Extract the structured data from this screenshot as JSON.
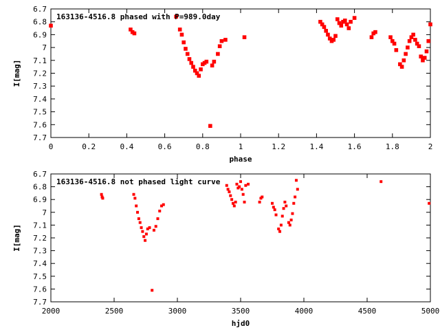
{
  "chart_data": [
    {
      "type": "scatter",
      "title": "163136-4516.8 phased with P=989.0day",
      "xlabel": "phase",
      "ylabel": "I[mag]",
      "xlim": [
        0,
        2
      ],
      "ylim": [
        6.7,
        7.7
      ],
      "y_inverted": true,
      "x_ticks": [
        "0",
        "0.2",
        "0.4",
        "0.6",
        "0.8",
        "1",
        "1.2",
        "1.4",
        "1.6",
        "1.8",
        "2"
      ],
      "y_ticks": [
        "6.7",
        "6.8",
        "6.9",
        "7",
        "7.1",
        "7.2",
        "7.3",
        "7.4",
        "7.5",
        "7.6",
        "7.7"
      ],
      "color": "#ff0000",
      "series": [
        {
          "x": [
            0.0,
            0.42,
            0.43,
            0.44,
            0.66,
            0.68,
            0.69,
            0.7,
            0.71,
            0.72,
            0.73,
            0.74,
            0.75,
            0.76,
            0.77,
            0.78,
            0.79,
            0.8,
            0.81,
            0.82,
            0.84,
            0.85,
            0.86,
            0.88,
            0.89,
            0.9,
            0.92,
            1.02,
            1.42,
            1.43,
            1.44,
            1.45,
            1.46,
            1.47,
            1.48,
            1.49,
            1.5,
            1.51,
            1.52,
            1.53,
            1.54,
            1.55,
            1.56,
            1.57,
            1.58,
            1.6,
            1.69,
            1.7,
            1.71,
            1.79,
            1.8,
            1.81,
            1.82,
            1.84,
            1.85,
            1.86,
            1.87,
            1.88,
            1.89,
            1.9,
            1.91,
            1.92,
            1.93,
            1.94,
            1.95,
            1.96,
            1.97,
            1.98,
            1.99,
            2.0
          ],
          "y": [
            6.83,
            6.86,
            6.88,
            6.89,
            6.76,
            6.86,
            6.9,
            6.96,
            7.01,
            7.05,
            7.09,
            7.12,
            7.15,
            7.18,
            7.2,
            7.22,
            7.17,
            7.13,
            7.12,
            7.11,
            7.61,
            7.14,
            7.11,
            7.05,
            6.99,
            6.95,
            6.94,
            6.92,
            6.8,
            6.82,
            6.84,
            6.87,
            6.9,
            6.93,
            6.95,
            6.94,
            6.91,
            6.78,
            6.81,
            6.83,
            6.8,
            6.79,
            6.82,
            6.85,
            6.8,
            6.77,
            6.92,
            6.89,
            6.88,
            6.92,
            6.95,
            6.97,
            7.02,
            7.13,
            7.15,
            7.1,
            7.05,
            7.0,
            6.95,
            6.92,
            6.9,
            6.94,
            6.97,
            6.99,
            7.07,
            7.1,
            7.08,
            7.03,
            6.95,
            6.82
          ]
        }
      ]
    },
    {
      "type": "scatter",
      "title": "163136-4516.8 not phased light curve",
      "xlabel": "hjd0",
      "ylabel": "I[mag]",
      "xlim": [
        2000,
        5000
      ],
      "ylim": [
        6.7,
        7.7
      ],
      "y_inverted": true,
      "x_ticks": [
        "2000",
        "2500",
        "3000",
        "3500",
        "4000",
        "4500",
        "5000"
      ],
      "y_ticks": [
        "6.7",
        "6.8",
        "6.9",
        "7",
        "7.1",
        "7.2",
        "7.3",
        "7.4",
        "7.5",
        "7.6",
        "7.7"
      ],
      "color": "#ff0000",
      "series": [
        {
          "x": [
            2400,
            2405,
            2410,
            2655,
            2665,
            2675,
            2685,
            2695,
            2705,
            2715,
            2725,
            2735,
            2745,
            2755,
            2765,
            2780,
            2800,
            2815,
            2830,
            2845,
            2860,
            2875,
            2890,
            3390,
            3400,
            3410,
            3420,
            3430,
            3440,
            3450,
            3460,
            3470,
            3480,
            3490,
            3500,
            3510,
            3520,
            3530,
            3540,
            3560,
            3650,
            3660,
            3670,
            3750,
            3760,
            3770,
            3780,
            3800,
            3810,
            3820,
            3830,
            3840,
            3850,
            3860,
            3880,
            3890,
            3900,
            3910,
            3920,
            3930,
            3940,
            3950,
            4610,
            4990
          ],
          "y": [
            6.86,
            6.88,
            6.89,
            6.86,
            6.89,
            6.95,
            7.0,
            7.05,
            7.08,
            7.12,
            7.15,
            7.19,
            7.22,
            7.17,
            7.13,
            7.12,
            7.61,
            7.14,
            7.11,
            7.05,
            6.99,
            6.95,
            6.94,
            6.79,
            6.82,
            6.84,
            6.87,
            6.9,
            6.93,
            6.95,
            6.92,
            6.78,
            6.81,
            6.8,
            6.76,
            6.82,
            6.86,
            6.92,
            6.79,
            6.78,
            6.92,
            6.89,
            6.88,
            6.93,
            6.96,
            6.98,
            7.02,
            7.13,
            7.15,
            7.1,
            7.03,
            6.97,
            6.92,
            6.95,
            7.08,
            7.1,
            7.06,
            7.01,
            6.93,
            6.88,
            6.75,
            6.82,
            6.76,
            6.93
          ]
        }
      ]
    }
  ]
}
